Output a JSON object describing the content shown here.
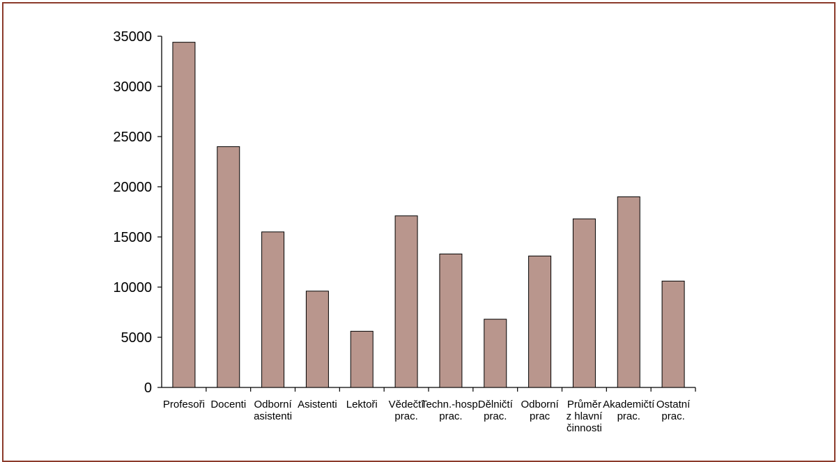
{
  "chart_data": {
    "type": "bar",
    "categories": [
      [
        "Profesoři"
      ],
      [
        "Docenti"
      ],
      [
        "Odborní",
        "asistenti"
      ],
      [
        "Asistenti"
      ],
      [
        "Lektoři"
      ],
      [
        "Vědečtí",
        "prac."
      ],
      [
        "Techn.-hosp.",
        "prac."
      ],
      [
        "Dělničtí",
        "prac."
      ],
      [
        "Odborní",
        "prac"
      ],
      [
        "Průměr",
        "z hlavní",
        "činnosti"
      ],
      [
        "Akademičtí",
        "prac."
      ],
      [
        "Ostatní",
        "prac."
      ]
    ],
    "values": [
      34400,
      24000,
      15500,
      9600,
      5600,
      17100,
      13300,
      6800,
      13100,
      16800,
      19000,
      10600
    ],
    "ylim": [
      0,
      35000
    ],
    "yticks": [
      0,
      5000,
      10000,
      15000,
      20000,
      25000,
      30000,
      35000
    ],
    "bar_color": "#b9968d",
    "bar_stroke": "#000000",
    "frame_color": "#8b3a2a",
    "title": "",
    "xlabel": "",
    "ylabel": "",
    "grid": false,
    "legend": "none"
  }
}
